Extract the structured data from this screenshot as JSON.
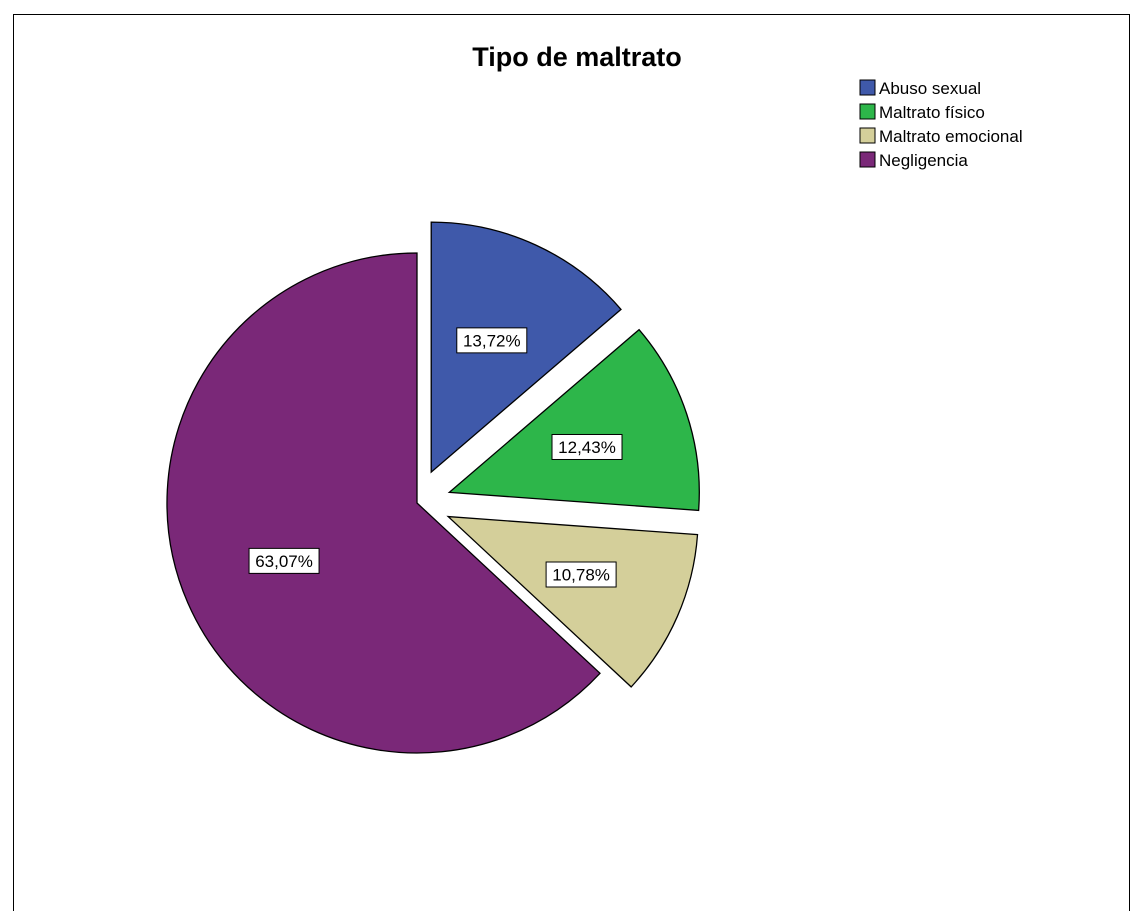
{
  "chart_data": {
    "type": "pie",
    "title": "Tipo de maltrato",
    "categories": [
      "Abuso sexual",
      "Maltrato físico",
      "Maltrato emocional",
      "Negligencia"
    ],
    "values": [
      13.72,
      12.43,
      10.78,
      63.07
    ],
    "value_labels": [
      "13,72%",
      "12,43%",
      "10,78%",
      "63,07%"
    ],
    "units": "%",
    "colors": [
      "#3f59aa",
      "#2db64a",
      "#d4cf9a",
      "#7a2878"
    ],
    "exploded": [
      true,
      true,
      true,
      false
    ],
    "start_angle_deg": 0,
    "direction": "clockwise",
    "legend_position": "top-right"
  }
}
